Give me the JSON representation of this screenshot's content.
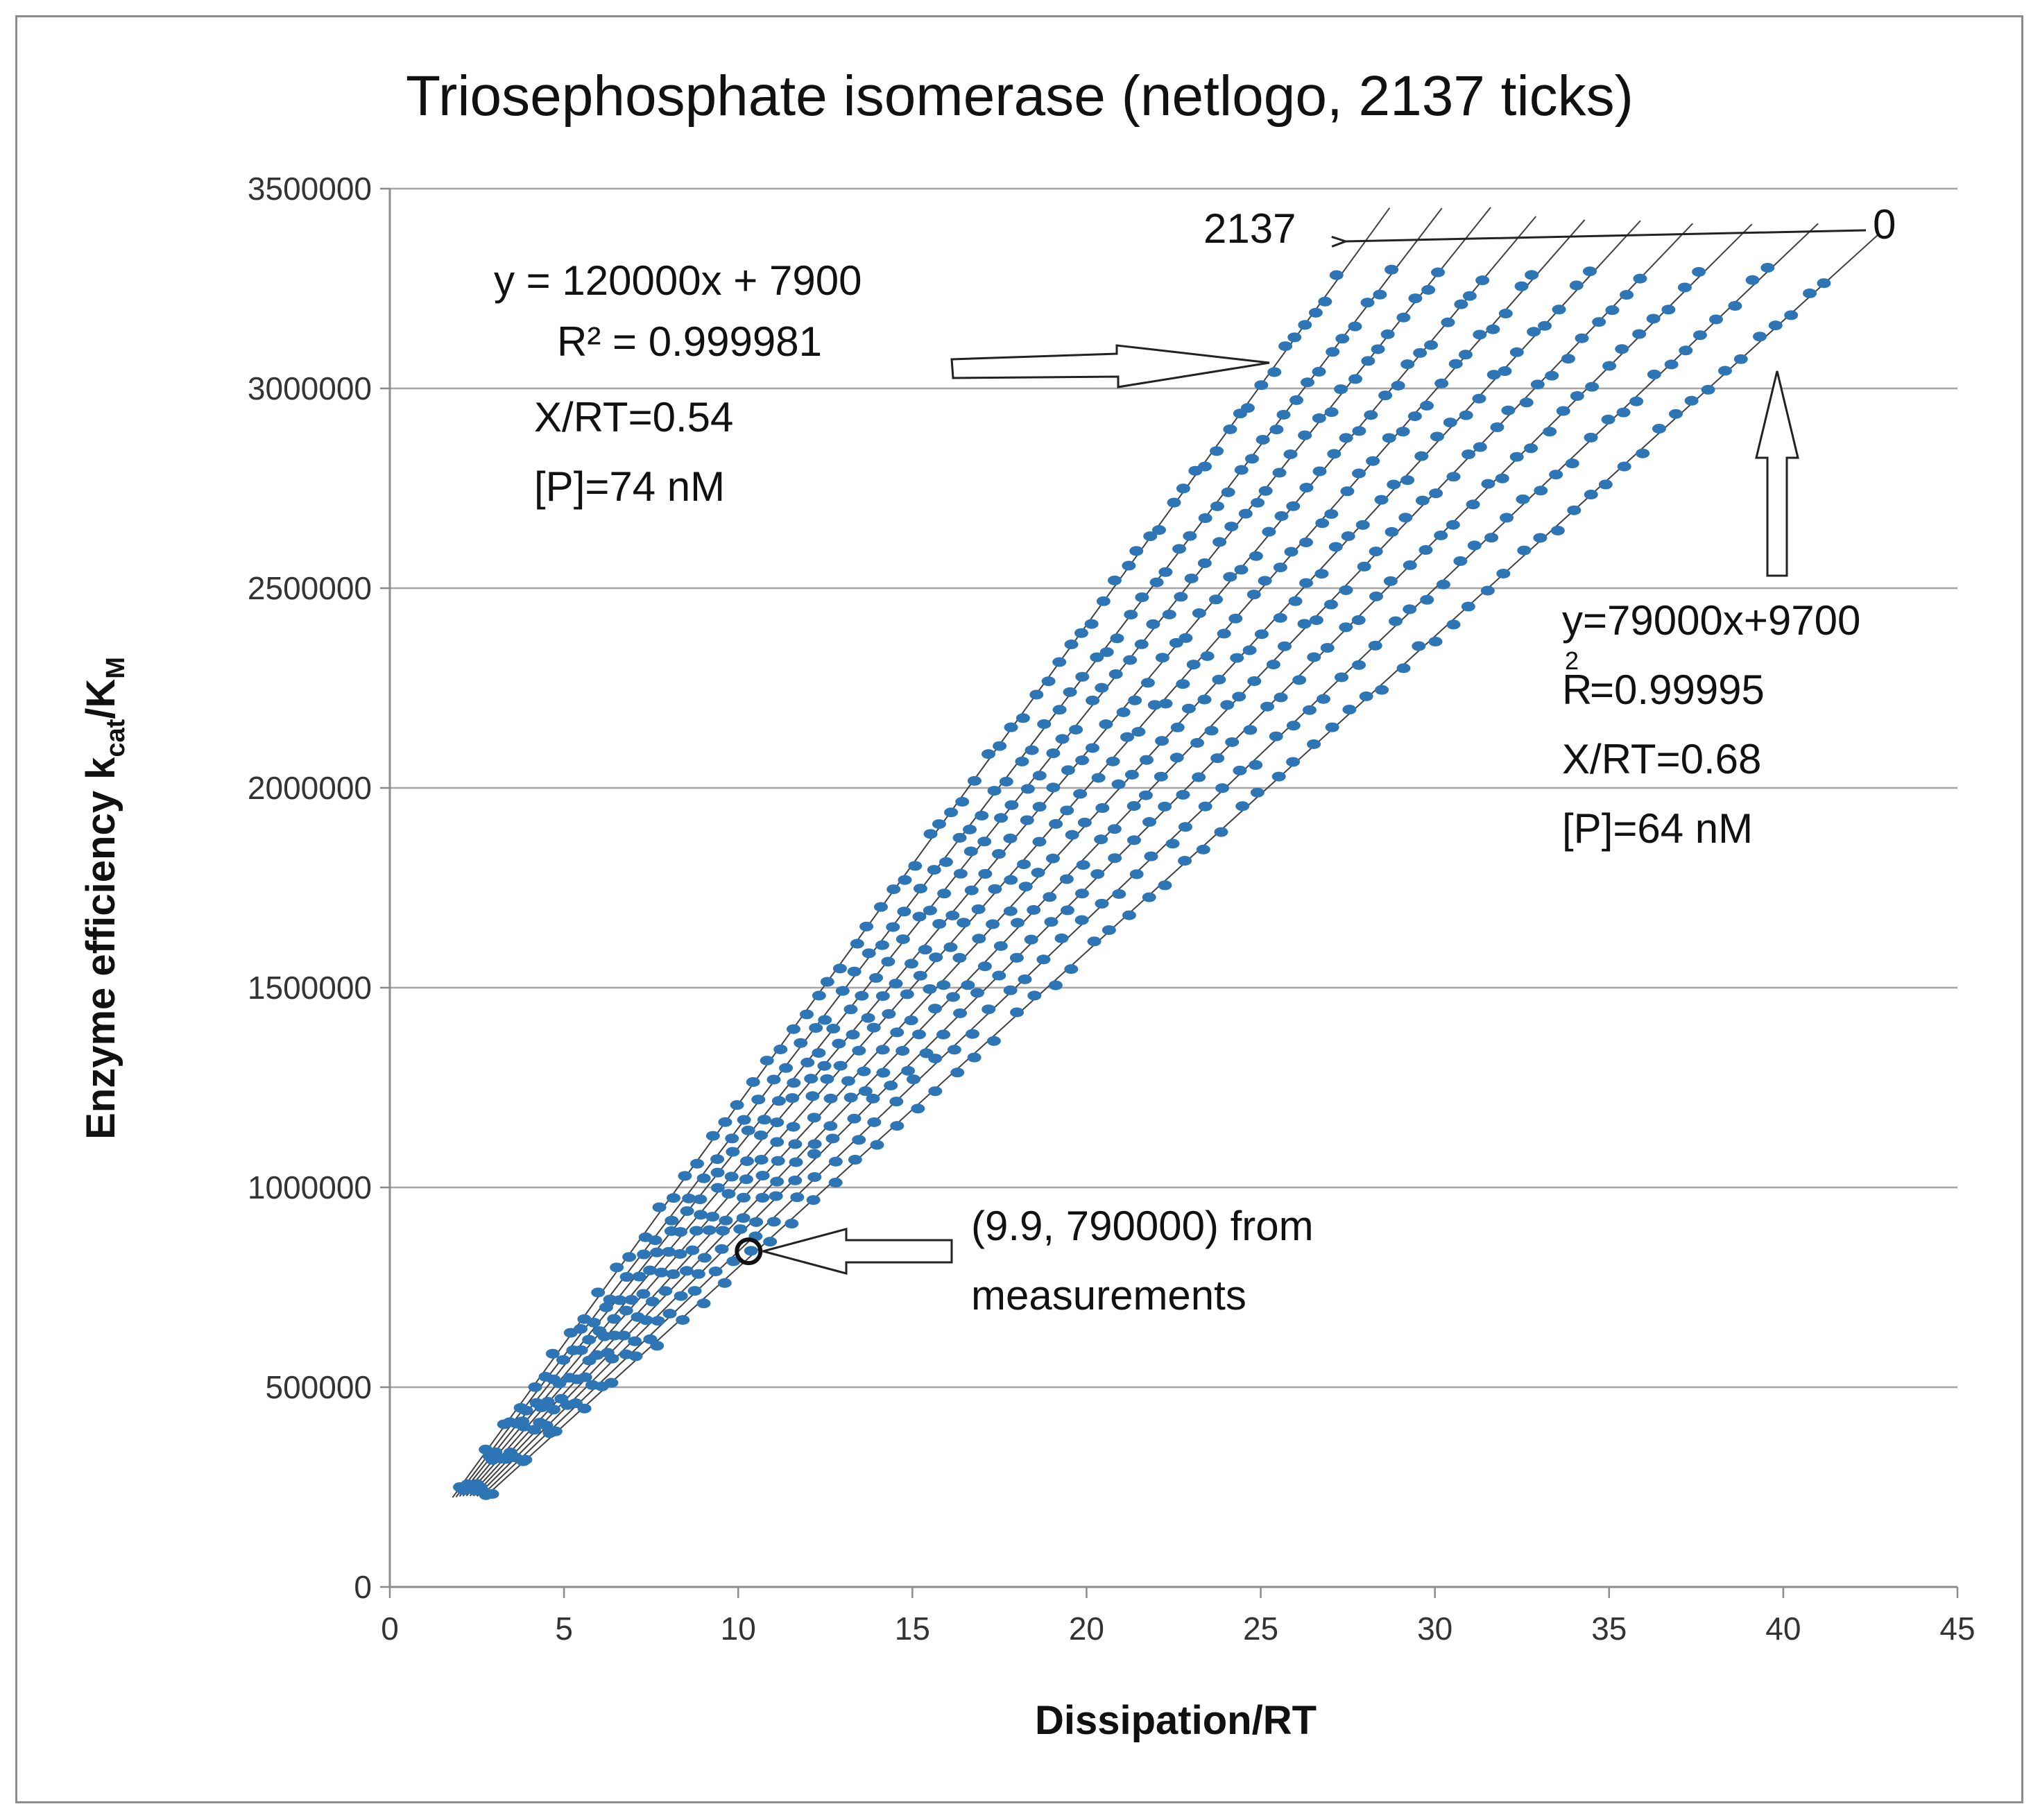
{
  "chart_data": {
    "type": "scatter",
    "title": "Triosephosphate isomerase (netlogo, 2137 ticks)",
    "xlabel": "Dissipation/RT",
    "ylabel": "Enzyme efficiency k",
    "ylabel_sub1": "cat",
    "ylabel_mid": "/K",
    "ylabel_sub2": "M",
    "xlim": [
      0,
      45
    ],
    "ylim": [
      0,
      3500000
    ],
    "x_ticks": [
      0,
      5,
      10,
      15,
      20,
      25,
      30,
      35,
      40,
      45
    ],
    "y_ticks": [
      0,
      500000,
      1000000,
      1500000,
      2000000,
      2500000,
      3000000,
      3500000
    ],
    "x_tick_labels": [
      "0",
      "5",
      "10",
      "15",
      "20",
      "25",
      "30",
      "35",
      "40",
      "45"
    ],
    "y_tick_labels": [
      "0",
      "500000",
      "1000000",
      "1500000",
      "2000000",
      "2500000",
      "3000000",
      "3500000"
    ],
    "grid": "horizontal",
    "point_color": "#2e75b6",
    "trendline_color": "#404040",
    "trendlines": [
      {
        "slope": 120000,
        "intercept": 7900,
        "x_start": 2.0,
        "x_end": 27.2
      },
      {
        "slope": 114000,
        "intercept": 8400,
        "x_start": 2.1,
        "x_end": 28.7
      },
      {
        "slope": 109000,
        "intercept": 8800,
        "x_start": 2.2,
        "x_end": 30.1
      },
      {
        "slope": 104000,
        "intercept": 9000,
        "x_start": 2.3,
        "x_end": 31.4
      },
      {
        "slope": 99500,
        "intercept": 9100,
        "x_start": 2.4,
        "x_end": 32.8
      },
      {
        "slope": 95000,
        "intercept": 9300,
        "x_start": 2.5,
        "x_end": 34.4
      },
      {
        "slope": 91000,
        "intercept": 9400,
        "x_start": 2.6,
        "x_end": 35.9
      },
      {
        "slope": 87000,
        "intercept": 9500,
        "x_start": 2.7,
        "x_end": 37.6
      },
      {
        "slope": 83000,
        "intercept": 9600,
        "x_start": 2.8,
        "x_end": 39.5
      },
      {
        "slope": 79000,
        "intercept": 9700,
        "x_start": 2.9,
        "x_end": 41.2
      }
    ],
    "points_per_line": 70,
    "annotations": {
      "top_left_eq": "y = 120000x + 7900",
      "top_left_r2": "R² = 0.999981",
      "top_left_xrt": "X/RT=0.54",
      "top_left_p": "[P]=74 nM",
      "label_2137": "2137",
      "label_0": "0",
      "right_eq": "y=79000x+9700",
      "right_r2_prefix": "R",
      "right_r2_exp": "2",
      "right_r2_value": "=0.99995",
      "right_xrt": "X/RT=0.68",
      "right_p": "[P]=64 nM",
      "measurement_line1": "(9.9, 790000) from",
      "measurement_line2": "measurements"
    },
    "measurement_point": {
      "x": 10.3,
      "y": 840000
    }
  }
}
